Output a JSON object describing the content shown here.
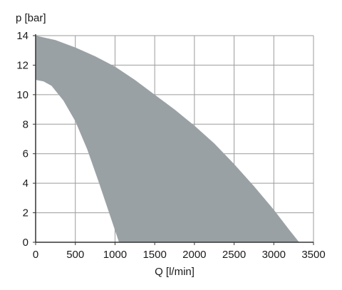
{
  "chart_data": {
    "type": "area",
    "title": "",
    "xlabel": "Q [l/min]",
    "ylabel": "p [bar]",
    "xlim": [
      0,
      3500
    ],
    "ylim": [
      0,
      14
    ],
    "xticks": [
      0,
      500,
      1000,
      1500,
      2000,
      2500,
      3000,
      3500
    ],
    "yticks": [
      0,
      2,
      4,
      6,
      8,
      10,
      12,
      14
    ],
    "x_tick_labels": [
      "0",
      "500",
      "1000",
      "1500",
      "2000",
      "2500",
      "3000",
      "3500"
    ],
    "y_tick_labels": [
      "0",
      "2",
      "4",
      "6",
      "8",
      "10",
      "12",
      "14"
    ],
    "grid": true,
    "legend": "none",
    "colors": {
      "band": "#9aa1a5",
      "grid": "#9b9b9b",
      "axis": "#333333"
    },
    "series": [
      {
        "role": "upper-boundary",
        "x": [
          0,
          250,
          500,
          750,
          1000,
          1250,
          1500,
          1750,
          2000,
          2250,
          2500,
          2750,
          3000,
          3200,
          3320
        ],
        "y": [
          14,
          13.7,
          13.2,
          12.6,
          11.9,
          11.0,
          10.0,
          9.0,
          7.9,
          6.7,
          5.3,
          3.8,
          2.2,
          0.8,
          0
        ]
      },
      {
        "role": "lower-boundary",
        "x": [
          0,
          100,
          200,
          350,
          500,
          650,
          800,
          950,
          1050
        ],
        "y": [
          11.0,
          10.9,
          10.6,
          9.6,
          8.2,
          6.3,
          4.0,
          1.6,
          0
        ]
      }
    ]
  }
}
